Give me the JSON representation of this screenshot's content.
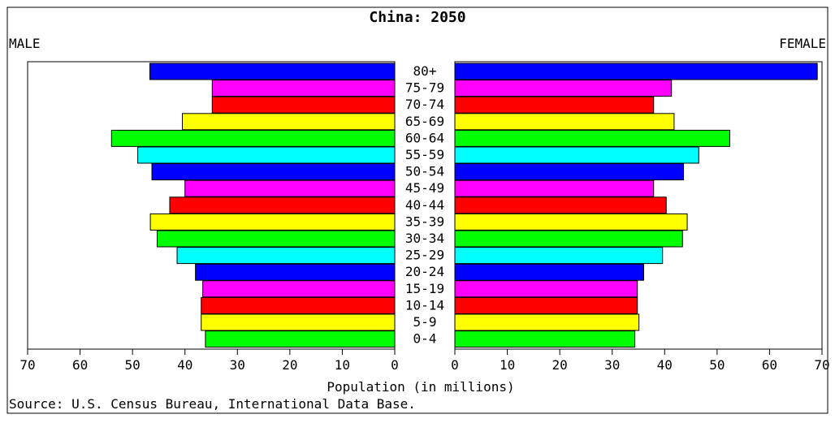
{
  "chart_data": {
    "type": "bar",
    "title": "China: 2050",
    "left_label": "MALE",
    "right_label": "FEMALE",
    "xlabel": "Population (in millions)",
    "source": "Source: U.S. Census Bureau, International Data Base.",
    "xlim": [
      0,
      70
    ],
    "ticks": [
      "70",
      "60",
      "50",
      "40",
      "30",
      "20",
      "10",
      "0"
    ],
    "ticks_right": [
      "0",
      "10",
      "20",
      "30",
      "40",
      "50",
      "60",
      "70"
    ],
    "categories": [
      "80+",
      "75-79",
      "70-74",
      "65-69",
      "60-64",
      "55-59",
      "50-54",
      "45-49",
      "40-44",
      "35-39",
      "30-34",
      "25-29",
      "20-24",
      "15-19",
      "10-14",
      "5-9",
      "0-4"
    ],
    "series": [
      {
        "name": "MALE",
        "values": [
          46.7,
          34.8,
          34.8,
          40.5,
          54.0,
          49.0,
          46.3,
          40.0,
          42.9,
          46.6,
          45.3,
          41.5,
          38.0,
          36.6,
          36.9,
          36.9,
          36.1
        ]
      },
      {
        "name": "FEMALE",
        "values": [
          69.1,
          41.3,
          37.9,
          41.8,
          52.4,
          46.5,
          43.6,
          37.9,
          40.3,
          44.3,
          43.4,
          39.6,
          36.0,
          34.8,
          34.8,
          35.1,
          34.3
        ]
      }
    ],
    "bar_colors": [
      "#0000ff",
      "#ff00ff",
      "#ff0000",
      "#ffff00",
      "#00ff00",
      "#00ffff",
      "#0000ff",
      "#ff00ff",
      "#ff0000",
      "#ffff00",
      "#00ff00",
      "#00ffff",
      "#0000ff",
      "#ff00ff",
      "#ff0000",
      "#ffff00",
      "#00ff00"
    ]
  }
}
